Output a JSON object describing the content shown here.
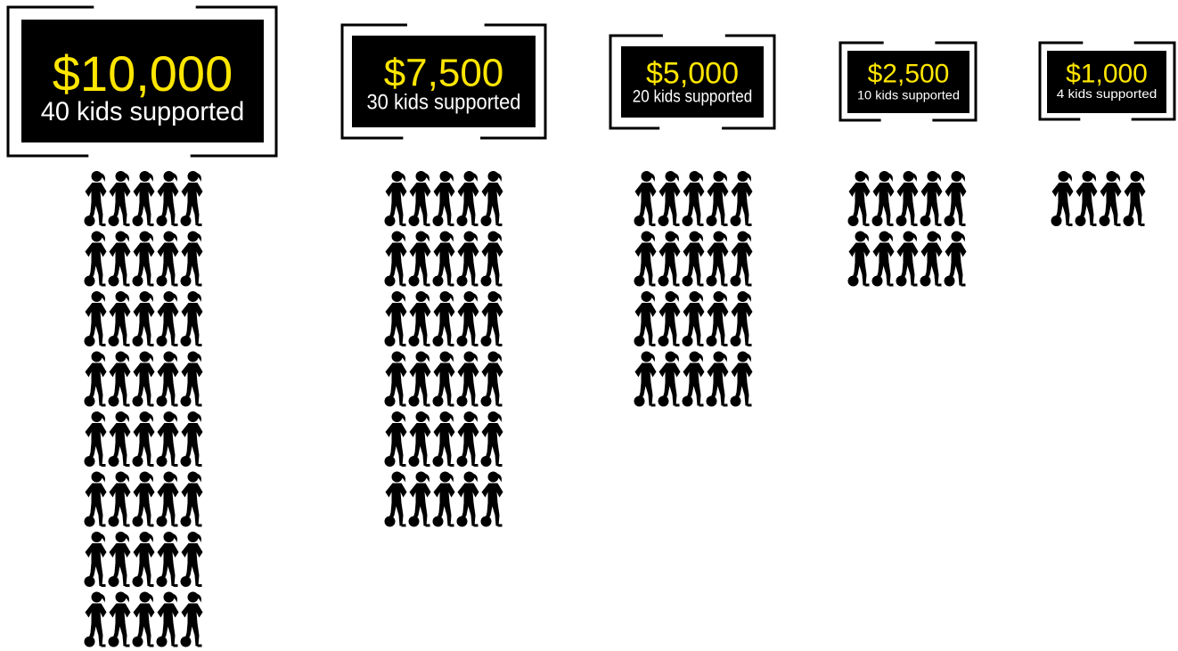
{
  "chart_data": {
    "type": "pictograph",
    "categories": [
      "$10,000",
      "$7,500",
      "$5,000",
      "$2,500",
      "$1,000"
    ],
    "values": [
      40,
      30,
      20,
      10,
      4
    ],
    "value_labels": [
      "40 kids supported",
      "30 kids supported",
      "20 kids supported",
      "10 kids supported",
      "4 kids supported"
    ],
    "color": "#000000"
  }
}
